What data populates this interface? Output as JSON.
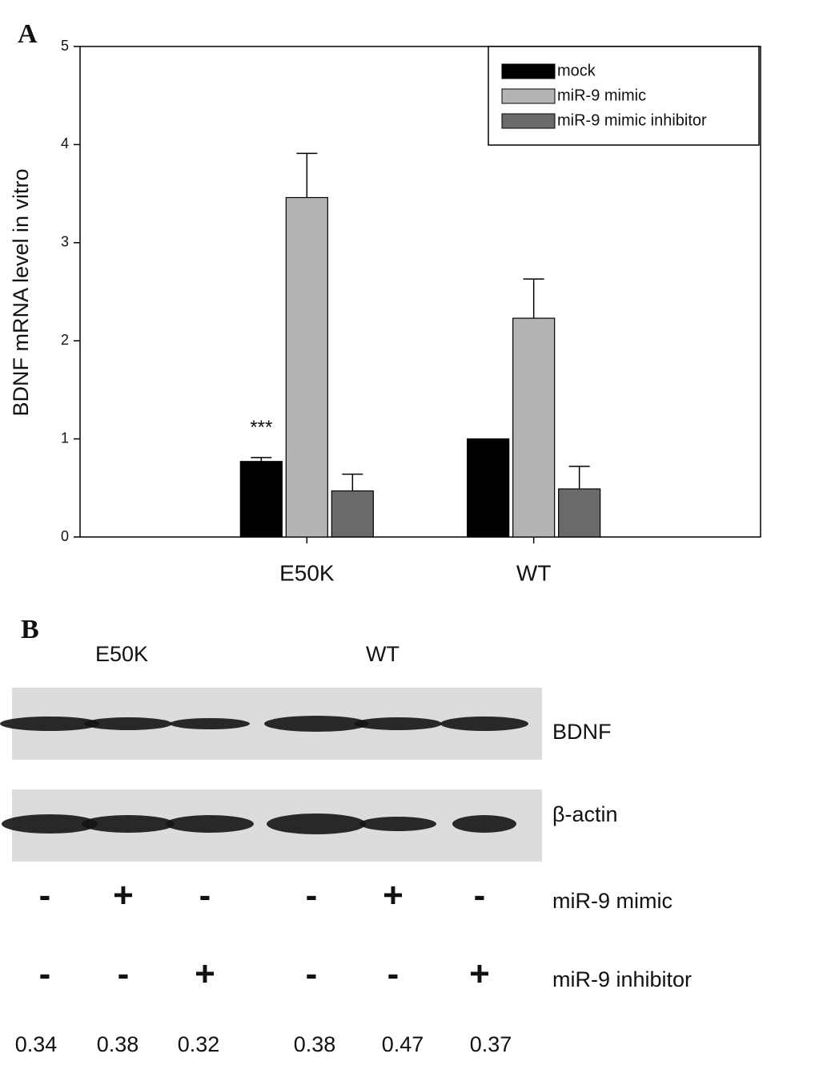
{
  "chart_data": {
    "type": "bar",
    "panel_label": "A",
    "y_label": "BDNF mRNA level in vitro",
    "categories": [
      "E50K",
      "WT"
    ],
    "series": [
      {
        "name": "mock",
        "color": "#000000",
        "values": [
          0.77,
          1.0
        ],
        "errors": [
          0.04,
          null
        ]
      },
      {
        "name": "miR-9 mimic",
        "color": "#b4b4b4",
        "values": [
          3.46,
          2.23
        ],
        "errors": [
          0.45,
          0.4
        ]
      },
      {
        "name": "miR-9 mimic inhibitor",
        "color": "#6a6a6a",
        "values": [
          0.47,
          0.49
        ],
        "errors": [
          0.17,
          0.23
        ]
      }
    ],
    "annotation": "***",
    "ylim": [
      0,
      5
    ],
    "yticks": [
      0,
      1,
      2,
      3,
      4,
      5
    ],
    "legend": "upper right"
  },
  "blot": {
    "panel_label": "B",
    "groups": [
      "E50K",
      "WT"
    ],
    "rows": [
      "BDNF",
      "β-actin"
    ],
    "treatments": [
      {
        "name": "miR-9 mimic",
        "signs": [
          "-",
          "+",
          "-",
          "-",
          "+",
          "-"
        ]
      },
      {
        "name": "miR-9 inhibitor",
        "signs": [
          "-",
          "-",
          "+",
          "-",
          "-",
          "+"
        ]
      }
    ],
    "ratios": [
      0.34,
      0.38,
      0.32,
      0.38,
      0.47,
      0.37
    ]
  }
}
